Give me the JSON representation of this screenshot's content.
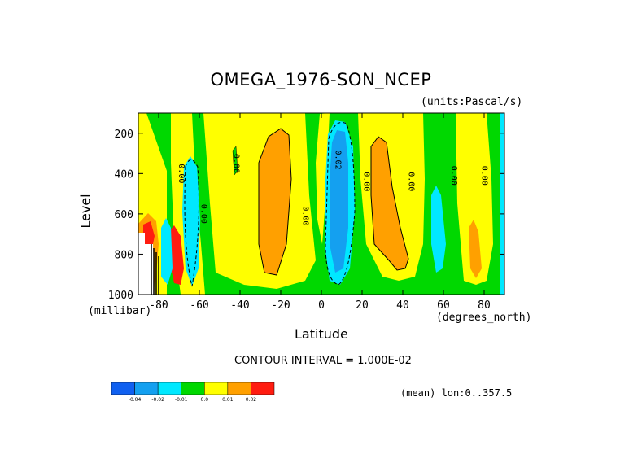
{
  "chart_data": {
    "type": "heatmap",
    "title": "OMEGA_1976-SON_NCEP",
    "units_note": "(units:Pascal/s)",
    "xlabel": "Latitude",
    "x_unit": "(degrees_north)",
    "ylabel": "Level",
    "y_unit": "(millibar)",
    "xlim": [
      -90,
      90
    ],
    "ylim": [
      1000,
      100
    ],
    "x_ticks": [
      "-80",
      "-60",
      "-40",
      "-20",
      "0",
      "20",
      "40",
      "60",
      "80"
    ],
    "x_tick_values": [
      -80,
      -60,
      -40,
      -20,
      0,
      20,
      40,
      60,
      80
    ],
    "y_ticks": [
      "200",
      "400",
      "600",
      "800",
      "1000"
    ],
    "y_tick_values": [
      200,
      400,
      600,
      800,
      1000
    ],
    "contour_labels": [
      "0.00",
      "0.00",
      "0.00",
      "-0.02",
      "0.00",
      "0.00",
      "0.00",
      "0.00",
      "0.00"
    ],
    "contour_interval": "CONTOUR INTERVAL = 1.000E-02",
    "colorbar": {
      "labels": [
        "-0.04",
        "-0.02",
        "-0.01",
        "0.0",
        "0.01",
        "0.02"
      ],
      "colors": [
        "#1060f0",
        "#14a0f0",
        "#00e8ff",
        "#00d800",
        "#ffff00",
        "#ffa000",
        "#ff1c10"
      ]
    },
    "mean_note": "(mean) lon:0..357.5"
  }
}
